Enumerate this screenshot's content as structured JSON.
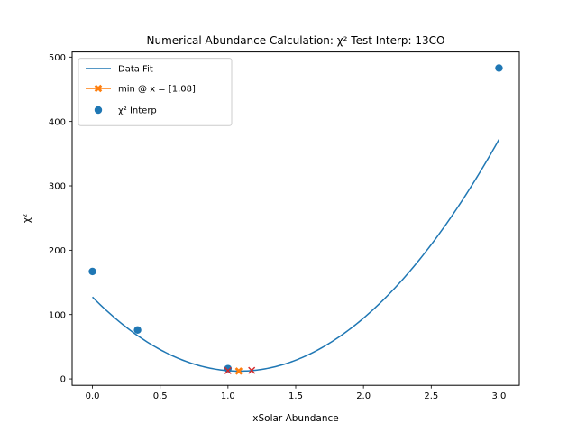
{
  "chart_data": {
    "type": "line",
    "title": "Numerical Abundance Calculation: χ² Test Interp: 13CO",
    "xlabel": "xSolar Abundance",
    "ylabel": "χ²",
    "xlim": [
      -0.15,
      3.15
    ],
    "ylim": [
      -10,
      508
    ],
    "xticks": [
      0.0,
      0.5,
      1.0,
      1.5,
      2.0,
      2.5,
      3.0
    ],
    "xtick_labels": [
      "0.0",
      "0.5",
      "1.0",
      "1.5",
      "2.0",
      "2.5",
      "3.0"
    ],
    "yticks": [
      0,
      100,
      200,
      300,
      400,
      500
    ],
    "ytick_labels": [
      "0",
      "100",
      "200",
      "300",
      "400",
      "500"
    ],
    "grid": false,
    "legend_position": "top-left",
    "series": [
      {
        "name": "Data Fit",
        "kind": "line",
        "color": "#1f77b4",
        "fit": {
          "form": "quadratic",
          "a": 98.0,
          "b": -212.4,
          "c": 127.2
        },
        "x_range": [
          0.0,
          3.0
        ]
      },
      {
        "name": "min @ x = [1.08]",
        "kind": "marker",
        "marker": "x-thick",
        "color": "#ff7f0e",
        "x": [
          1.08
        ],
        "y": [
          12.2
        ]
      },
      {
        "name": "χ² Interp",
        "kind": "scatter",
        "color": "#1f77b4",
        "x": [
          0.0,
          0.333,
          1.0,
          3.0
        ],
        "y": [
          167,
          76,
          16,
          483
        ]
      },
      {
        "name": "",
        "kind": "marker",
        "marker": "x",
        "color": "#d62728",
        "x": [
          1.0,
          1.175
        ],
        "y": [
          12.8,
          13.2
        ]
      }
    ]
  }
}
